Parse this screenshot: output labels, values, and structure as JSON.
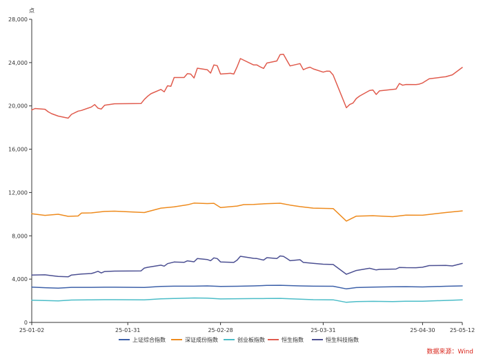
{
  "chart_data": {
    "type": "line",
    "y_unit": "点",
    "ylim": [
      0,
      28000
    ],
    "y_ticks": [
      0,
      4000,
      8000,
      12000,
      16000,
      20000,
      24000,
      28000
    ],
    "y_tick_labels": [
      "0",
      "4,000",
      "8,000",
      "12,000",
      "16,000",
      "20,000",
      "24,000",
      "28,000"
    ],
    "x_ticks": [
      "25-01-02",
      "25-01-31",
      "25-02-28",
      "25-03-31",
      "25-04-30",
      "25-05-12"
    ],
    "grid": false,
    "legend_position": "bottom",
    "source": "数据来源：Wind",
    "series": [
      {
        "name": "上证综合指数",
        "color": "#3b5fa8",
        "points": [
          [
            "2025-01-02",
            3260
          ],
          [
            "2025-01-06",
            3210
          ],
          [
            "2025-01-10",
            3170
          ],
          [
            "2025-01-14",
            3240
          ],
          [
            "2025-01-20",
            3240
          ],
          [
            "2025-01-24",
            3250
          ],
          [
            "2025-01-27",
            3250
          ],
          [
            "2025-02-05",
            3230
          ],
          [
            "2025-02-10",
            3320
          ],
          [
            "2025-02-14",
            3350
          ],
          [
            "2025-02-20",
            3350
          ],
          [
            "2025-02-24",
            3370
          ],
          [
            "2025-02-28",
            3320
          ],
          [
            "2025-03-05",
            3340
          ],
          [
            "2025-03-10",
            3370
          ],
          [
            "2025-03-14",
            3420
          ],
          [
            "2025-03-18",
            3430
          ],
          [
            "2025-03-24",
            3370
          ],
          [
            "2025-03-28",
            3350
          ],
          [
            "2025-04-03",
            3340
          ],
          [
            "2025-04-07",
            3100
          ],
          [
            "2025-04-10",
            3220
          ],
          [
            "2025-04-15",
            3260
          ],
          [
            "2025-04-21",
            3290
          ],
          [
            "2025-04-25",
            3300
          ],
          [
            "2025-04-30",
            3280
          ],
          [
            "2025-05-07",
            3340
          ],
          [
            "2025-05-12",
            3370
          ]
        ]
      },
      {
        "name": "深证成份指数",
        "color": "#ee8a1c",
        "points": [
          [
            "2025-01-02",
            10040
          ],
          [
            "2025-01-06",
            9890
          ],
          [
            "2025-01-10",
            9990
          ],
          [
            "2025-01-13",
            9800
          ],
          [
            "2025-01-16",
            9830
          ],
          [
            "2025-01-17",
            10100
          ],
          [
            "2025-01-20",
            10120
          ],
          [
            "2025-01-24",
            10250
          ],
          [
            "2025-01-27",
            10280
          ],
          [
            "2025-02-05",
            10150
          ],
          [
            "2025-02-10",
            10560
          ],
          [
            "2025-02-14",
            10680
          ],
          [
            "2025-02-18",
            10860
          ],
          [
            "2025-02-20",
            11020
          ],
          [
            "2025-02-24",
            10980
          ],
          [
            "2025-02-26",
            11000
          ],
          [
            "2025-02-28",
            10610
          ],
          [
            "2025-03-05",
            10750
          ],
          [
            "2025-03-07",
            10880
          ],
          [
            "2025-03-10",
            10900
          ],
          [
            "2025-03-14",
            10970
          ],
          [
            "2025-03-18",
            11010
          ],
          [
            "2025-03-21",
            10840
          ],
          [
            "2025-03-24",
            10700
          ],
          [
            "2025-03-28",
            10560
          ],
          [
            "2025-04-03",
            10520
          ],
          [
            "2025-04-07",
            9360
          ],
          [
            "2025-04-10",
            9820
          ],
          [
            "2025-04-15",
            9860
          ],
          [
            "2025-04-21",
            9770
          ],
          [
            "2025-04-25",
            9910
          ],
          [
            "2025-04-30",
            9900
          ],
          [
            "2025-05-07",
            10150
          ],
          [
            "2025-05-12",
            10300
          ]
        ]
      },
      {
        "name": "创业板指数",
        "color": "#49bcc7",
        "points": [
          [
            "2025-01-02",
            2050
          ],
          [
            "2025-01-06",
            2020
          ],
          [
            "2025-01-10",
            1990
          ],
          [
            "2025-01-14",
            2070
          ],
          [
            "2025-01-20",
            2090
          ],
          [
            "2025-01-24",
            2100
          ],
          [
            "2025-01-27",
            2100
          ],
          [
            "2025-02-05",
            2080
          ],
          [
            "2025-02-10",
            2180
          ],
          [
            "2025-02-14",
            2210
          ],
          [
            "2025-02-20",
            2260
          ],
          [
            "2025-02-24",
            2240
          ],
          [
            "2025-02-28",
            2170
          ],
          [
            "2025-03-05",
            2190
          ],
          [
            "2025-03-10",
            2200
          ],
          [
            "2025-03-14",
            2210
          ],
          [
            "2025-03-18",
            2220
          ],
          [
            "2025-03-24",
            2150
          ],
          [
            "2025-03-28",
            2100
          ],
          [
            "2025-04-03",
            2090
          ],
          [
            "2025-04-07",
            1860
          ],
          [
            "2025-04-10",
            1930
          ],
          [
            "2025-04-15",
            1950
          ],
          [
            "2025-04-21",
            1930
          ],
          [
            "2025-04-25",
            1960
          ],
          [
            "2025-04-30",
            1960
          ],
          [
            "2025-05-07",
            2030
          ],
          [
            "2025-05-12",
            2080
          ]
        ]
      },
      {
        "name": "恒生指数",
        "color": "#e05a4c",
        "points": [
          [
            "2025-01-02",
            19620
          ],
          [
            "2025-01-03",
            19760
          ],
          [
            "2025-01-06",
            19690
          ],
          [
            "2025-01-07",
            19450
          ],
          [
            "2025-01-08",
            19280
          ],
          [
            "2025-01-10",
            19060
          ],
          [
            "2025-01-13",
            18870
          ],
          [
            "2025-01-14",
            19220
          ],
          [
            "2025-01-16",
            19520
          ],
          [
            "2025-01-17",
            19580
          ],
          [
            "2025-01-20",
            19900
          ],
          [
            "2025-01-21",
            20120
          ],
          [
            "2025-01-22",
            19790
          ],
          [
            "2025-01-23",
            19710
          ],
          [
            "2025-01-24",
            20060
          ],
          [
            "2025-01-27",
            20200
          ],
          [
            "2025-02-04",
            20220
          ],
          [
            "2025-02-05",
            20600
          ],
          [
            "2025-02-06",
            20890
          ],
          [
            "2025-02-07",
            21130
          ],
          [
            "2025-02-10",
            21520
          ],
          [
            "2025-02-11",
            21300
          ],
          [
            "2025-02-12",
            21860
          ],
          [
            "2025-02-13",
            21810
          ],
          [
            "2025-02-14",
            22620
          ],
          [
            "2025-02-17",
            22620
          ],
          [
            "2025-02-18",
            22980
          ],
          [
            "2025-02-19",
            22940
          ],
          [
            "2025-02-20",
            22580
          ],
          [
            "2025-02-21",
            23480
          ],
          [
            "2025-02-24",
            23340
          ],
          [
            "2025-02-25",
            23030
          ],
          [
            "2025-02-26",
            23790
          ],
          [
            "2025-02-27",
            23720
          ],
          [
            "2025-02-28",
            22940
          ],
          [
            "2025-03-03",
            23010
          ],
          [
            "2025-03-04",
            22940
          ],
          [
            "2025-03-05",
            23600
          ],
          [
            "2025-03-06",
            24370
          ],
          [
            "2025-03-10",
            23780
          ],
          [
            "2025-03-11",
            23780
          ],
          [
            "2025-03-12",
            23600
          ],
          [
            "2025-03-13",
            23460
          ],
          [
            "2025-03-14",
            23960
          ],
          [
            "2025-03-17",
            24150
          ],
          [
            "2025-03-18",
            24740
          ],
          [
            "2025-03-19",
            24770
          ],
          [
            "2025-03-20",
            24220
          ],
          [
            "2025-03-21",
            23690
          ],
          [
            "2025-03-24",
            23910
          ],
          [
            "2025-03-25",
            23340
          ],
          [
            "2025-03-26",
            23480
          ],
          [
            "2025-03-27",
            23580
          ],
          [
            "2025-03-28",
            23420
          ],
          [
            "2025-03-31",
            23120
          ],
          [
            "2025-04-01",
            23210
          ],
          [
            "2025-04-02",
            23200
          ],
          [
            "2025-04-03",
            22850
          ],
          [
            "2025-04-07",
            19830
          ],
          [
            "2025-04-08",
            20130
          ],
          [
            "2025-04-09",
            20260
          ],
          [
            "2025-04-10",
            20680
          ],
          [
            "2025-04-11",
            20910
          ],
          [
            "2025-04-14",
            21420
          ],
          [
            "2025-04-15",
            21470
          ],
          [
            "2025-04-16",
            21060
          ],
          [
            "2025-04-17",
            21390
          ],
          [
            "2025-04-22",
            21560
          ],
          [
            "2025-04-23",
            22070
          ],
          [
            "2025-04-24",
            21910
          ],
          [
            "2025-04-25",
            21980
          ],
          [
            "2025-04-28",
            21970
          ],
          [
            "2025-04-29",
            22010
          ],
          [
            "2025-04-30",
            22120
          ],
          [
            "2025-05-02",
            22500
          ],
          [
            "2025-05-06",
            22660
          ],
          [
            "2025-05-07",
            22690
          ],
          [
            "2025-05-08",
            22780
          ],
          [
            "2025-05-09",
            22870
          ],
          [
            "2025-05-12",
            23550
          ]
        ]
      },
      {
        "name": "恒生科技指数",
        "color": "#4a4e91",
        "points": [
          [
            "2025-01-02",
            4380
          ],
          [
            "2025-01-06",
            4400
          ],
          [
            "2025-01-08",
            4320
          ],
          [
            "2025-01-10",
            4250
          ],
          [
            "2025-01-13",
            4210
          ],
          [
            "2025-01-14",
            4380
          ],
          [
            "2025-01-17",
            4470
          ],
          [
            "2025-01-20",
            4520
          ],
          [
            "2025-01-21",
            4610
          ],
          [
            "2025-01-22",
            4720
          ],
          [
            "2025-01-23",
            4570
          ],
          [
            "2025-01-24",
            4700
          ],
          [
            "2025-01-27",
            4740
          ],
          [
            "2025-02-04",
            4760
          ],
          [
            "2025-02-05",
            5020
          ],
          [
            "2025-02-06",
            5090
          ],
          [
            "2025-02-10",
            5290
          ],
          [
            "2025-02-11",
            5200
          ],
          [
            "2025-02-12",
            5430
          ],
          [
            "2025-02-14",
            5580
          ],
          [
            "2025-02-17",
            5550
          ],
          [
            "2025-02-18",
            5690
          ],
          [
            "2025-02-20",
            5600
          ],
          [
            "2025-02-21",
            5900
          ],
          [
            "2025-02-24",
            5810
          ],
          [
            "2025-02-25",
            5700
          ],
          [
            "2025-02-26",
            5960
          ],
          [
            "2025-02-27",
            5900
          ],
          [
            "2025-02-28",
            5590
          ],
          [
            "2025-03-04",
            5540
          ],
          [
            "2025-03-05",
            5750
          ],
          [
            "2025-03-06",
            6110
          ],
          [
            "2025-03-10",
            5920
          ],
          [
            "2025-03-11",
            5900
          ],
          [
            "2025-03-13",
            5760
          ],
          [
            "2025-03-14",
            5980
          ],
          [
            "2025-03-17",
            5900
          ],
          [
            "2025-03-18",
            6140
          ],
          [
            "2025-03-19",
            6100
          ],
          [
            "2025-03-20",
            5910
          ],
          [
            "2025-03-21",
            5700
          ],
          [
            "2025-03-24",
            5790
          ],
          [
            "2025-03-25",
            5540
          ],
          [
            "2025-03-28",
            5460
          ],
          [
            "2025-03-31",
            5380
          ],
          [
            "2025-04-03",
            5350
          ],
          [
            "2025-04-07",
            4450
          ],
          [
            "2025-04-10",
            4800
          ],
          [
            "2025-04-14",
            5000
          ],
          [
            "2025-04-16",
            4850
          ],
          [
            "2025-04-17",
            4900
          ],
          [
            "2025-04-22",
            4930
          ],
          [
            "2025-04-23",
            5080
          ],
          [
            "2025-04-25",
            5060
          ],
          [
            "2025-04-28",
            5050
          ],
          [
            "2025-04-30",
            5100
          ],
          [
            "2025-05-02",
            5250
          ],
          [
            "2025-05-07",
            5260
          ],
          [
            "2025-05-09",
            5220
          ],
          [
            "2025-05-12",
            5450
          ]
        ]
      }
    ]
  }
}
